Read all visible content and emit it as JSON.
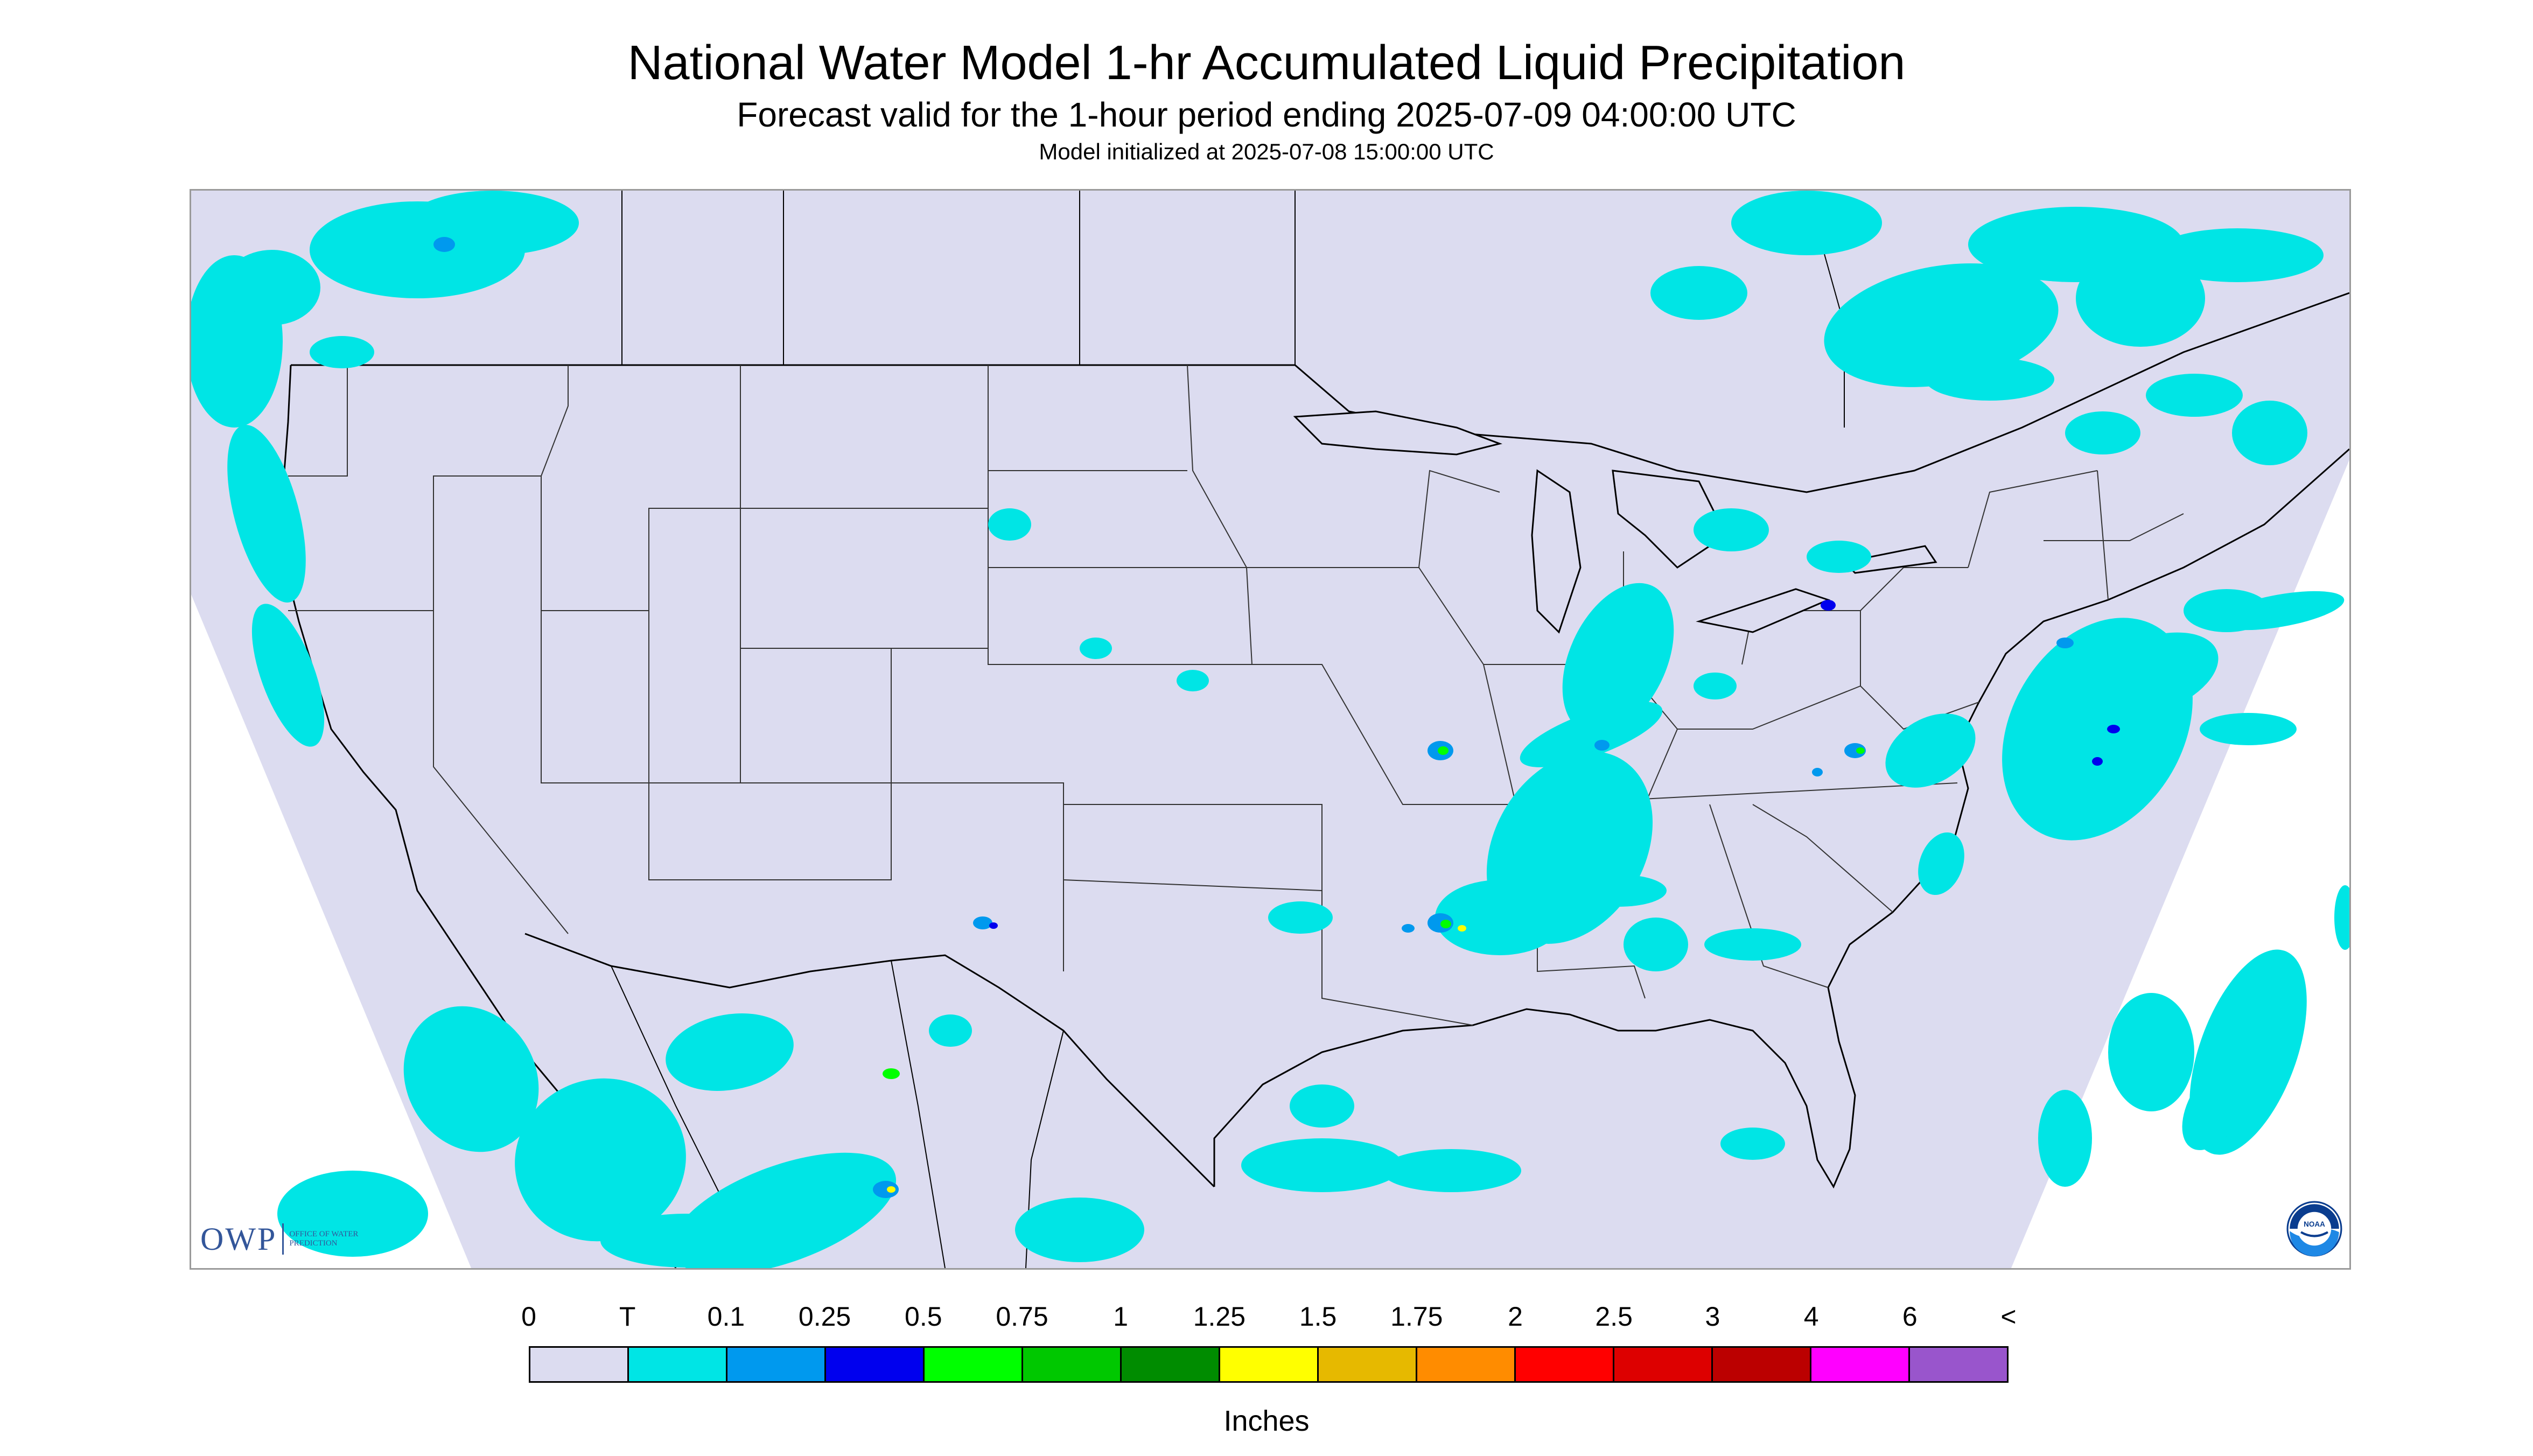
{
  "header": {
    "title": "National Water Model 1-hr Accumulated Liquid Precipitation",
    "subtitle": "Forecast valid for the 1-hour period ending 2025-07-09 04:00:00 UTC",
    "init": "Model initialized at 2025-07-08 15:00:00 UTC"
  },
  "map": {
    "background_color": "#dcdcf0",
    "projection": "Lambert conformal (CONUS)"
  },
  "logos": {
    "owp_mark": "OWP",
    "owp_text": "Office of Water Prediction",
    "noaa_icon": "noaa-logo-icon",
    "noaa_text": "NOAA"
  },
  "legend": {
    "tick_labels": [
      "0",
      "T",
      "0.1",
      "0.25",
      "0.5",
      "0.75",
      "1",
      "1.25",
      "1.5",
      "1.75",
      "2",
      "2.5",
      "3",
      "4",
      "6",
      "<"
    ],
    "colors": [
      "#dcdcf0",
      "#00e5e5",
      "#0099ee",
      "#0000ee",
      "#00ff00",
      "#00c800",
      "#008c00",
      "#ffff00",
      "#e6b900",
      "#ff8c00",
      "#ff0000",
      "#dd0000",
      "#bb0000",
      "#ff00ff",
      "#9955cc"
    ],
    "units": "Inches"
  }
}
